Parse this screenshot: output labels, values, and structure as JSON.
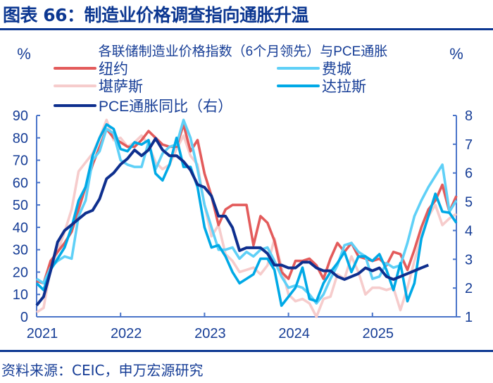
{
  "header": {
    "title": "图表 66：制造业价格调查指向通胀升温"
  },
  "footer": {
    "source": "资料来源：CEIC，申万宏源研究"
  },
  "chart_data": {
    "type": "line",
    "title": "各联储制造业价格指数（6个月领先）与PCE通胀",
    "ylabel_left": "%",
    "ylabel_right": "%",
    "ylim_left": [
      0,
      90
    ],
    "yticks_left": [
      "0",
      "10",
      "20",
      "30",
      "40",
      "50",
      "60",
      "70",
      "80",
      "90"
    ],
    "ylim_right": [
      1,
      8
    ],
    "yticks_right": [
      "1",
      "2",
      "3",
      "4",
      "5",
      "6",
      "7",
      "8"
    ],
    "xticks": [
      "2021",
      "2022",
      "2023",
      "2024",
      "2025"
    ],
    "x_start": "2021-01",
    "x_frequency": "monthly",
    "x_end_axis": "2026-01",
    "grid": false,
    "legend_placement": "top",
    "series": [
      {
        "name": "纽约",
        "color": "#e35b5b",
        "axis": "left",
        "values": [
          16,
          15,
          25,
          29,
          33,
          38,
          48,
          58,
          68,
          76,
          84,
          80,
          78,
          76,
          76,
          79,
          83,
          80,
          77,
          76,
          76,
          86,
          74,
          79,
          64,
          54,
          41,
          48,
          50,
          50,
          50,
          32,
          45,
          42,
          34,
          20,
          17,
          25,
          25,
          26,
          23,
          17,
          26,
          33,
          29,
          33,
          27,
          26,
          25,
          26,
          23,
          29,
          28,
          21,
          30,
          40,
          48,
          52,
          59,
          47,
          54
        ]
      },
      {
        "name": "费城",
        "color": "#5fd0f7",
        "axis": "left",
        "values": [
          17,
          15,
          22,
          25,
          27,
          26,
          45,
          52,
          70,
          74,
          84,
          82,
          70,
          68,
          67,
          67,
          78,
          66,
          73,
          76,
          77,
          88,
          80,
          66,
          50,
          40,
          30,
          30,
          31,
          26,
          29,
          27,
          30,
          31,
          25,
          18,
          13,
          14,
          13,
          10,
          6,
          10,
          17,
          23,
          32,
          33,
          29,
          27,
          17,
          18,
          24,
          22,
          23,
          33,
          45,
          52,
          58,
          63,
          68,
          47,
          52
        ]
      },
      {
        "name": "堪萨斯",
        "color": "#f6cccc",
        "axis": "left",
        "values": [
          2,
          4,
          22,
          29,
          38,
          48,
          65,
          69,
          73,
          80,
          88,
          79,
          80,
          76,
          78,
          81,
          77,
          69,
          66,
          68,
          75,
          81,
          72,
          68,
          50,
          36,
          41,
          28,
          25,
          20,
          21,
          22,
          19,
          23,
          35,
          22,
          10,
          7,
          8,
          6,
          0,
          8,
          9,
          19,
          17,
          27,
          20,
          10,
          13,
          13,
          12,
          13,
          3,
          13,
          25,
          36,
          45,
          50,
          41,
          44,
          46
        ]
      },
      {
        "name": "达拉斯",
        "color": "#00a9e6",
        "axis": "left",
        "values": [
          15,
          12,
          21,
          26,
          31,
          40,
          52,
          58,
          72,
          80,
          86,
          84,
          75,
          74,
          78,
          77,
          79,
          64,
          61,
          68,
          80,
          67,
          67,
          58,
          40,
          31,
          32,
          27,
          20,
          15,
          17,
          19,
          26,
          26,
          21,
          5,
          9,
          13,
          22,
          8,
          7,
          15,
          20,
          24,
          29,
          20,
          27,
          27,
          25,
          28,
          21,
          12,
          24,
          7,
          15,
          35,
          45,
          55,
          47,
          46.5,
          42
        ]
      },
      {
        "name": "PCE通胀同比（右）",
        "color": "#0e2f8e",
        "axis": "right",
        "values": [
          1.4,
          1.7,
          2.6,
          3.6,
          4.0,
          4.2,
          4.4,
          4.6,
          4.7,
          5.1,
          5.8,
          6.0,
          6.3,
          6.5,
          6.8,
          6.6,
          6.8,
          7.2,
          6.8,
          6.6,
          6.6,
          6.4,
          6.1,
          5.6,
          5.5,
          5.2,
          4.5,
          4.5,
          4.1,
          3.3,
          3.4,
          3.4,
          3.4,
          3.2,
          2.8,
          2.8,
          2.7,
          2.7,
          2.9,
          2.9,
          2.7,
          2.6,
          2.6,
          2.4,
          2.3,
          2.4,
          2.5,
          2.7,
          2.6,
          2.7,
          2.4,
          2.3,
          2.4,
          2.5,
          2.6,
          2.7,
          2.8
        ]
      }
    ]
  }
}
